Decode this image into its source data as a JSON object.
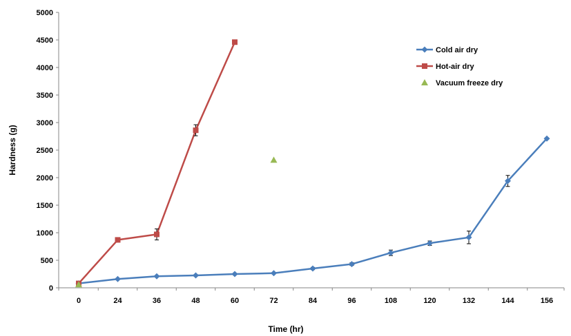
{
  "chart_data": {
    "type": "line",
    "xlabel": "Time (hr)",
    "ylabel": "Hardness (g)",
    "categories": [
      "0",
      "24",
      "36",
      "48",
      "60",
      "72",
      "84",
      "96",
      "108",
      "120",
      "132",
      "144",
      "156"
    ],
    "ylim": [
      0,
      5000
    ],
    "yticks": [
      "0",
      "500",
      "1000",
      "1500",
      "2000",
      "2500",
      "3000",
      "3500",
      "4000",
      "4500",
      "5000"
    ],
    "grid": false,
    "legend_position": "top-right",
    "series": [
      {
        "name": "Cold air dry",
        "color": "#4a7ebb",
        "marker": "diamond",
        "values": [
          80,
          160,
          210,
          225,
          250,
          265,
          350,
          430,
          635,
          810,
          915,
          1940,
          2710
        ],
        "errors": [
          0,
          15,
          15,
          15,
          15,
          15,
          20,
          25,
          50,
          40,
          115,
          100,
          0
        ]
      },
      {
        "name": "Hot-air dry",
        "color": "#be4b48",
        "marker": "square",
        "values": [
          80,
          870,
          970,
          2860,
          4460,
          null,
          null,
          null,
          null,
          null,
          null,
          null,
          null
        ],
        "errors": [
          0,
          40,
          100,
          100,
          0,
          null,
          null,
          null,
          null,
          null,
          null,
          null,
          null
        ]
      },
      {
        "name": "Vacuum freeze dry",
        "color": "#98b954",
        "marker": "triangle",
        "values": [
          60,
          null,
          null,
          null,
          null,
          2320,
          null,
          null,
          null,
          null,
          null,
          null,
          null
        ],
        "errors": [
          0,
          null,
          null,
          null,
          null,
          0,
          null,
          null,
          null,
          null,
          null,
          null,
          null
        ]
      }
    ]
  }
}
